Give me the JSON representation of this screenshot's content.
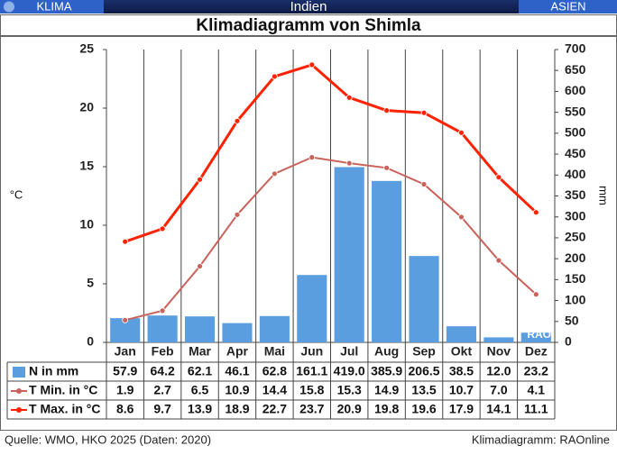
{
  "header": {
    "left": "KLIMA",
    "center": "Indien",
    "right": "ASIEN"
  },
  "chart_data": {
    "type": "bar-line",
    "title": "Klimadiagramm von Shimla",
    "categories": [
      "Jan",
      "Feb",
      "Mar",
      "Apr",
      "Mai",
      "Jun",
      "Jul",
      "Aug",
      "Sep",
      "Okt",
      "Nov",
      "Dez"
    ],
    "series": [
      {
        "name": "N in mm",
        "color": "#5b9ee0",
        "axis": "y2",
        "kind": "bar",
        "values": [
          57.9,
          64.2,
          62.1,
          46.1,
          62.8,
          161.1,
          419.0,
          385.9,
          206.5,
          38.5,
          12.0,
          23.2
        ],
        "value_labels": [
          "57.9",
          "64.2",
          "62.1",
          "46.1",
          "62.8",
          "161.1",
          "419.0",
          "385.9",
          "206.5",
          "38.5",
          "12.0",
          "23.2"
        ]
      },
      {
        "name": "T Min. in °C",
        "color": "#c8625a",
        "axis": "y",
        "kind": "line",
        "values": [
          1.9,
          2.7,
          6.5,
          10.9,
          14.4,
          15.8,
          15.3,
          14.9,
          13.5,
          10.7,
          7.0,
          4.1
        ],
        "value_labels": [
          "1.9",
          "2.7",
          "6.5",
          "10.9",
          "14.4",
          "15.8",
          "15.3",
          "14.9",
          "13.5",
          "10.7",
          "7.0",
          "4.1"
        ]
      },
      {
        "name": "T Max. in °C",
        "color": "#ff2200",
        "axis": "y",
        "kind": "line",
        "values": [
          8.6,
          9.7,
          13.9,
          18.9,
          22.7,
          23.7,
          20.9,
          19.8,
          19.6,
          17.9,
          14.1,
          11.1
        ],
        "value_labels": [
          "8.6",
          "9.7",
          "13.9",
          "18.9",
          "22.7",
          "23.7",
          "20.9",
          "19.8",
          "19.6",
          "17.9",
          "14.1",
          "11.1"
        ]
      }
    ],
    "ylabel": "°C",
    "y2label": "mm",
    "ylim": [
      0,
      25
    ],
    "yticks": [
      0,
      5,
      10,
      15,
      20,
      25
    ],
    "y2lim": [
      0,
      700
    ],
    "y2ticks": [
      0,
      50,
      100,
      150,
      200,
      250,
      300,
      350,
      400,
      450,
      500,
      550,
      600,
      650,
      700
    ],
    "watermark": "RAO",
    "source": "Quelle: WMO, HKO 2025 (Daten: 2020)",
    "credit": "Klimadiagramm: RAOnline"
  }
}
